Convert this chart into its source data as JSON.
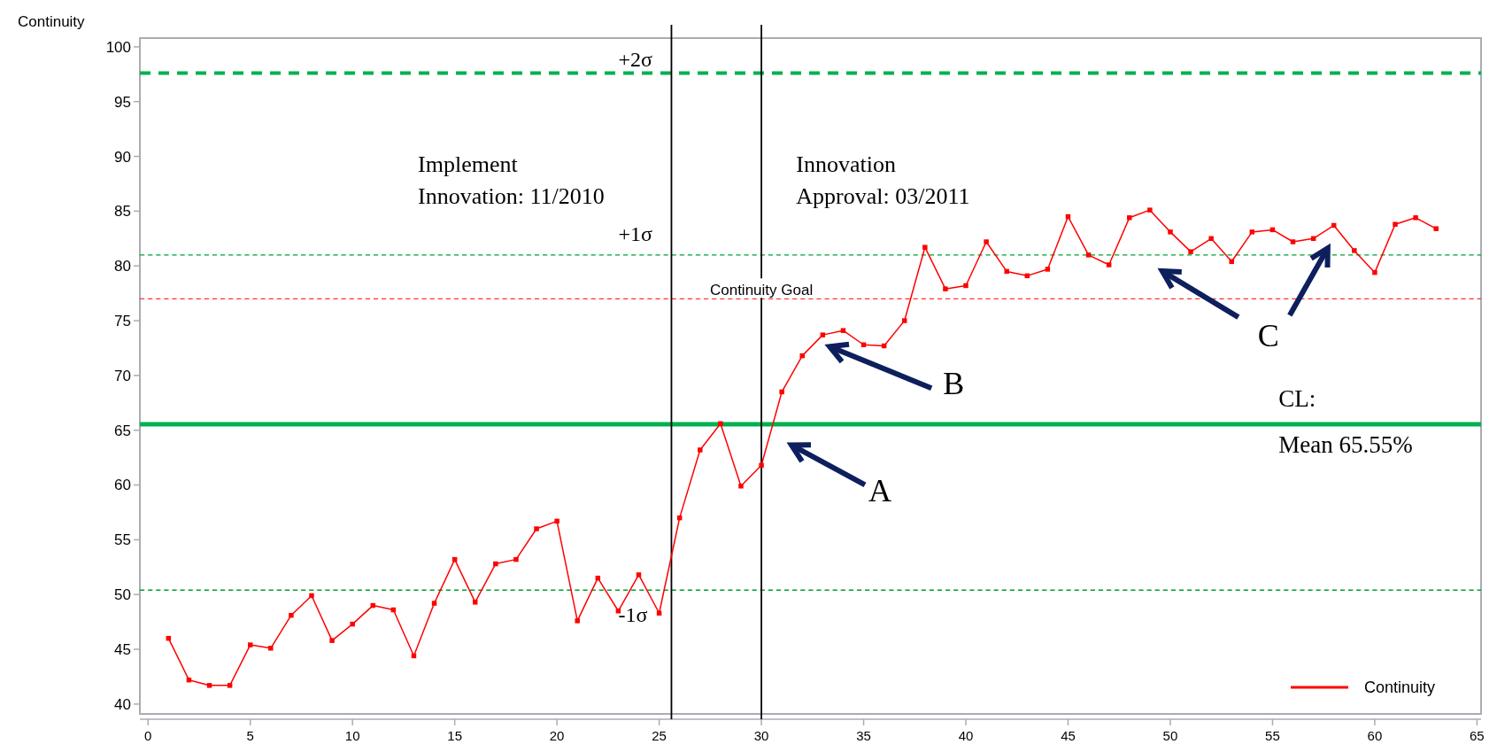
{
  "chart_data": {
    "type": "line",
    "ylabel": "Continuity",
    "x": [
      1,
      2,
      3,
      4,
      5,
      6,
      7,
      8,
      9,
      10,
      11,
      12,
      13,
      14,
      15,
      16,
      17,
      18,
      19,
      20,
      21,
      22,
      23,
      24,
      25,
      26,
      27,
      28,
      29,
      30,
      31,
      32,
      33,
      34,
      35,
      36,
      37,
      38,
      39,
      40,
      41,
      42,
      43,
      44,
      45,
      46,
      47,
      48,
      49,
      50,
      51,
      52,
      53,
      54,
      55,
      56,
      57,
      58,
      59,
      60,
      61,
      62,
      63
    ],
    "series": [
      {
        "name": "Continuity",
        "color": "#ff0000",
        "values": [
          46,
          42.2,
          41.7,
          41.7,
          45.4,
          45.1,
          48.1,
          49.9,
          45.8,
          47.3,
          49,
          48.6,
          44.4,
          49.2,
          53.2,
          49.3,
          52.8,
          53.2,
          56,
          56.7,
          47.6,
          51.5,
          48.5,
          51.8,
          48.3,
          57,
          63.2,
          65.6,
          59.9,
          61.8,
          68.5,
          71.8,
          73.7,
          74.1,
          72.8,
          72.7,
          75,
          81.7,
          77.9,
          78.2,
          82.2,
          79.5,
          79.1,
          79.7,
          84.5,
          81,
          80.1,
          84.4,
          85.1,
          83.1,
          81.3,
          82.5,
          80.4,
          83.1,
          83.3,
          82.2,
          82.5,
          83.7,
          81.4,
          79.4,
          83.8,
          84.4,
          83.4
        ]
      }
    ],
    "xlim": [
      -0.4,
      65.2
    ],
    "ylim": [
      39.1,
      100.8
    ],
    "xticks": [
      0,
      5,
      10,
      15,
      20,
      25,
      30,
      35,
      40,
      45,
      50,
      55,
      60,
      65
    ],
    "yticks": [
      40,
      45,
      50,
      55,
      60,
      65,
      70,
      75,
      80,
      85,
      90,
      95,
      100
    ],
    "ref_lines": [
      {
        "axis": "y",
        "value": 97.6,
        "label": "+2σ",
        "color": "#00b050",
        "line_style": "dashed"
      },
      {
        "axis": "y",
        "value": 81,
        "label": "+1σ",
        "color": "#00a030",
        "line_style": "dashed"
      },
      {
        "axis": "y",
        "value": 77,
        "label": "Continuity Goal",
        "color": "#ff3030",
        "line_style": "dashed"
      },
      {
        "axis": "y",
        "value": 65.55,
        "label": "CL:\nMean 65.55%",
        "color": "#00b050",
        "line_style": "solid"
      },
      {
        "axis": "y",
        "value": 50.4,
        "label": "-1σ",
        "color": "#00a030",
        "line_style": "dashed"
      },
      {
        "axis": "x",
        "value": 25.6,
        "color": "#000000",
        "line_style": "solid"
      },
      {
        "axis": "x",
        "value": 30,
        "color": "#000000",
        "line_style": "solid"
      }
    ],
    "annotations": [
      "Implement\nInnovation: 11/2010",
      "Innovation\nApproval: 03/2011",
      "A",
      "B",
      "C"
    ],
    "marker": "square",
    "line_style": "solid",
    "legend": "bottom right",
    "grid": false
  }
}
